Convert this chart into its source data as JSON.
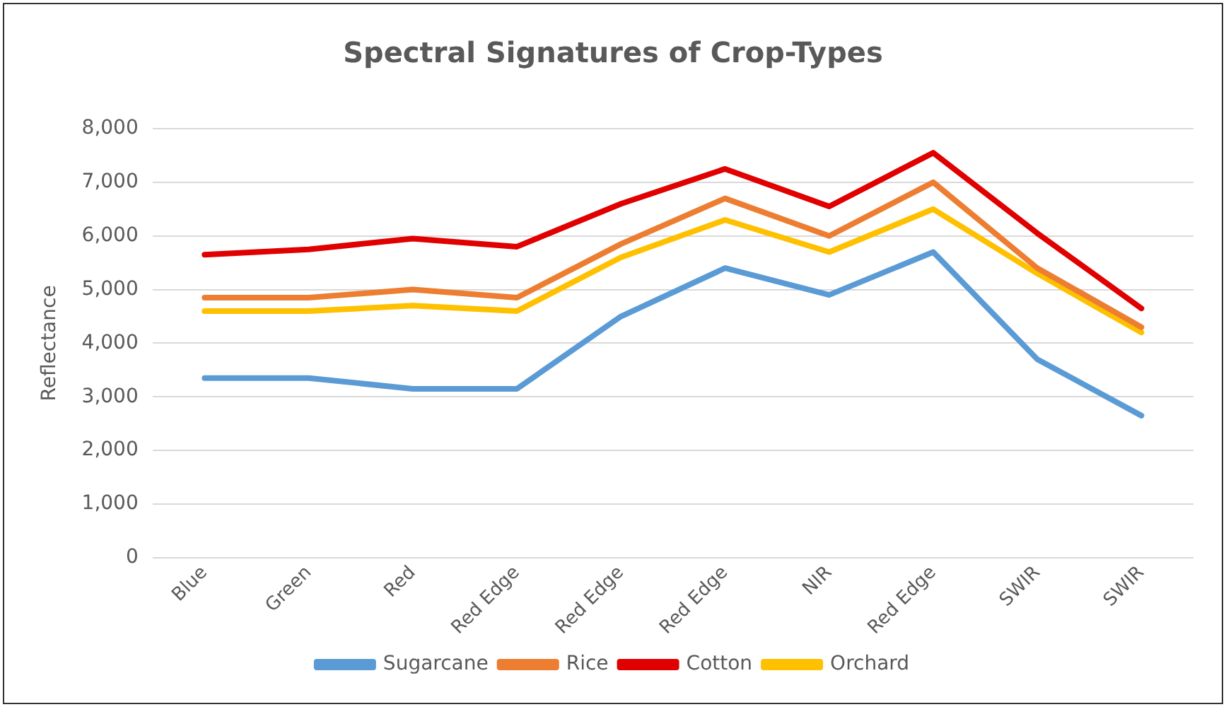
{
  "chart_data": {
    "type": "line",
    "title": "Spectral Signatures of Crop-Types",
    "ylabel": "Reflectance",
    "categories": [
      "Blue",
      "Green",
      "Red",
      "Red Edge",
      "Red Edge",
      "Red Edge",
      "NIR",
      "Red Edge",
      "SWIR",
      "SWIR"
    ],
    "series": [
      {
        "name": "Sugarcane",
        "color": "#5b9bd5",
        "values": [
          3350,
          3350,
          3150,
          3150,
          4500,
          5400,
          4900,
          5700,
          3700,
          2650
        ]
      },
      {
        "name": "Rice",
        "color": "#ed7d31",
        "values": [
          4850,
          4850,
          5000,
          4850,
          5850,
          6700,
          6000,
          7000,
          5400,
          4300
        ]
      },
      {
        "name": "Cotton",
        "color": "#e00000",
        "values": [
          5650,
          5750,
          5950,
          5800,
          6600,
          7250,
          6550,
          7550,
          6050,
          4650
        ]
      },
      {
        "name": "Orchard",
        "color": "#ffc000",
        "values": [
          4600,
          4600,
          4700,
          4600,
          5600,
          6300,
          5700,
          6500,
          5300,
          4200
        ]
      }
    ],
    "ylim": [
      0,
      8000
    ],
    "yticks": [
      {
        "value": 0,
        "label": "0"
      },
      {
        "value": 1000,
        "label": "1,000"
      },
      {
        "value": 2000,
        "label": "2,000"
      },
      {
        "value": 3000,
        "label": "3,000"
      },
      {
        "value": 4000,
        "label": "4,000"
      },
      {
        "value": 5000,
        "label": "5,000"
      },
      {
        "value": 6000,
        "label": "6,000"
      },
      {
        "value": 7000,
        "label": "7,000"
      },
      {
        "value": 8000,
        "label": "8,000"
      }
    ],
    "grid": "y",
    "legend": "bottom",
    "marker": "none",
    "line_style": "solid"
  }
}
